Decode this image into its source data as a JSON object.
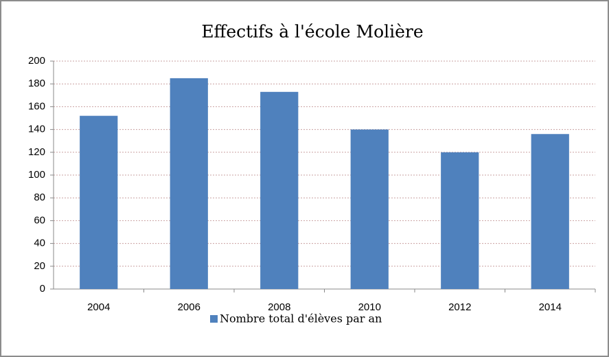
{
  "chart_data": {
    "type": "bar",
    "title": "Effectifs à l'école Molière",
    "categories": [
      "2004",
      "2006",
      "2008",
      "2010",
      "2012",
      "2014"
    ],
    "series": [
      {
        "name": "Nombre total d'élèves par an",
        "color": "#4f81bd",
        "values": [
          152,
          185,
          173,
          140,
          120,
          136
        ]
      }
    ],
    "ylim": [
      0,
      200
    ],
    "yticks": [
      0,
      20,
      40,
      60,
      80,
      100,
      120,
      140,
      160,
      180,
      200
    ],
    "grid": true,
    "legend": "bottom"
  }
}
